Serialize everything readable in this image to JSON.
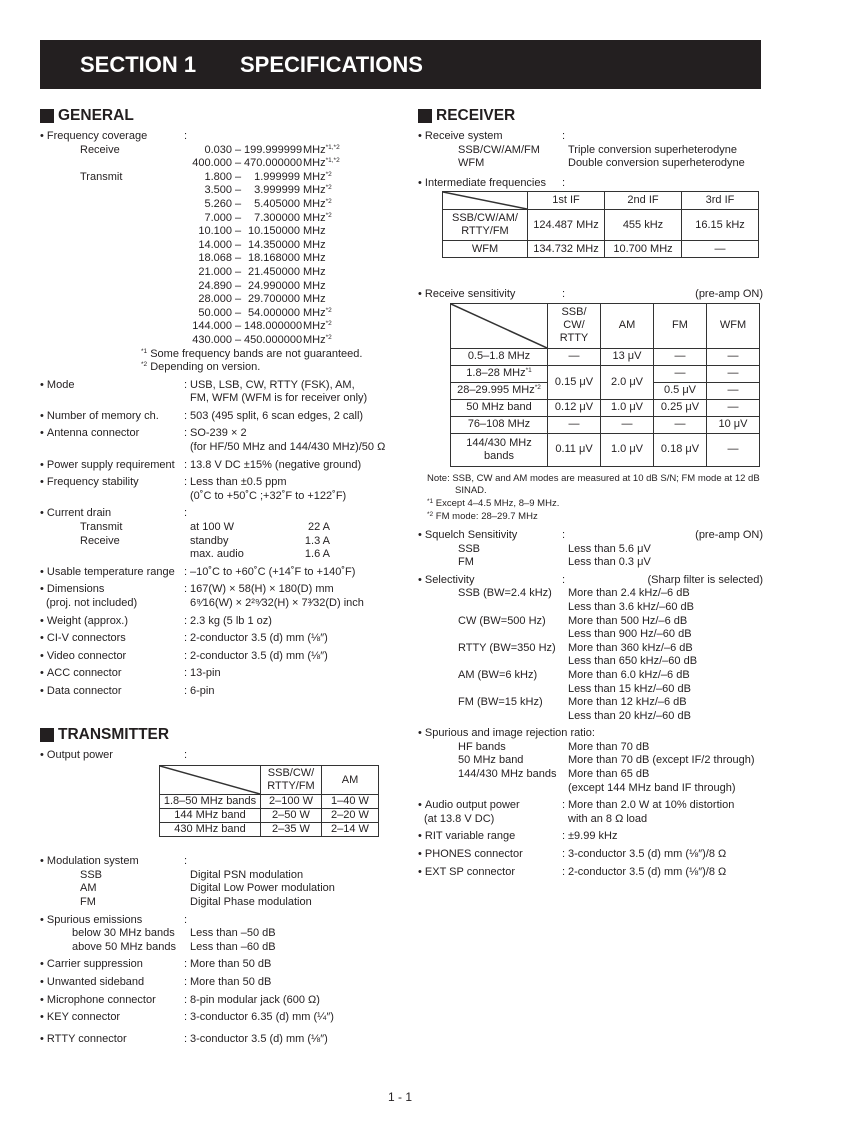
{
  "header": {
    "section": "SECTION 1",
    "title": "SPECIFICATIONS"
  },
  "general": {
    "title": "GENERAL",
    "freq": {
      "label": "Frequency coverage",
      "receive_label": "Receive",
      "receive": [
        {
          "from": "0.030",
          "to": "199.999999",
          "unit": "MHz",
          "note": "*1,*2"
        },
        {
          "from": "400.000",
          "to": "470.000000",
          "unit": "MHz",
          "note": "*1,*2"
        }
      ],
      "transmit_label": "Transmit",
      "transmit": [
        {
          "from": "1.800",
          "to": "1.999999",
          "unit": "MHz",
          "note": "*2"
        },
        {
          "from": "3.500",
          "to": "3.999999",
          "unit": "MHz",
          "note": "*2"
        },
        {
          "from": "5.260",
          "to": "5.405000",
          "unit": "MHz",
          "note": "*2"
        },
        {
          "from": "7.000",
          "to": "7.300000",
          "unit": "MHz",
          "note": "*2"
        },
        {
          "from": "10.100",
          "to": "10.150000",
          "unit": "MHz",
          "note": ""
        },
        {
          "from": "14.000",
          "to": "14.350000",
          "unit": "MHz",
          "note": ""
        },
        {
          "from": "18.068",
          "to": "18.168000",
          "unit": "MHz",
          "note": ""
        },
        {
          "from": "21.000",
          "to": "21.450000",
          "unit": "MHz",
          "note": ""
        },
        {
          "from": "24.890",
          "to": "24.990000",
          "unit": "MHz",
          "note": ""
        },
        {
          "from": "28.000",
          "to": "29.700000",
          "unit": "MHz",
          "note": ""
        },
        {
          "from": "50.000",
          "to": "54.000000",
          "unit": "MHz",
          "note": "*2"
        },
        {
          "from": "144.000",
          "to": "148.000000",
          "unit": "MHz",
          "note": "*2"
        },
        {
          "from": "430.000",
          "to": "450.000000",
          "unit": "MHz",
          "note": "*2"
        }
      ],
      "footnotes": [
        {
          "mark": "*1",
          "text": " Some frequency bands are not guaranteed."
        },
        {
          "mark": "*2",
          "text": " Depending on version."
        }
      ]
    },
    "items": [
      {
        "label": "Mode",
        "value": [
          "USB, LSB, CW, RTTY (FSK), AM,",
          "FM, WFM (WFM is for receiver only)"
        ]
      },
      {
        "label": "Number of memory ch.",
        "value": [
          "503 (495 split, 6 scan edges, 2 call)"
        ]
      },
      {
        "label": "Antenna connector",
        "value": [
          "SO-239 × 2",
          "(for HF/50 MHz and 144/430 MHz)/50 Ω"
        ]
      },
      {
        "label": "Power supply requirement",
        "value": [
          "13.8 V DC ±15% (negative ground)"
        ]
      },
      {
        "label": "Frequency stability",
        "value": [
          "Less than ±0.5 ppm",
          "(0˚C to +50˚C ;+32˚F to +122˚F)"
        ]
      },
      {
        "label": "Current drain",
        "value": [],
        "sub": [
          {
            "label": "Transmit",
            "value": "at 100 W",
            "extra": "22 A"
          },
          {
            "label": "Receive",
            "value": "standby",
            "extra": "1.3 A"
          },
          {
            "label": "",
            "value": "max. audio",
            "extra": "1.6 A"
          }
        ]
      },
      {
        "label": "Usable temperature range",
        "value": [
          "–10˚C to +60˚C (+14˚F to +140˚F)"
        ]
      },
      {
        "label": "Dimensions",
        "label_sub": "(proj. not included)",
        "value": [
          "167(W) × 58(H) × 180(D) mm",
          "6⁹⁄16(W) × 2²⁹⁄32(H) × 7³⁄32(D) inch"
        ]
      },
      {
        "label": "Weight (approx.)",
        "value": [
          "2.3 kg (5 lb 1 oz)"
        ]
      },
      {
        "label": "CI-V connectors",
        "value": [
          "2-conductor 3.5 (d) mm (⅛″)"
        ]
      },
      {
        "label": "Video connector",
        "value": [
          "2-conductor 3.5 (d) mm (⅛″)"
        ]
      },
      {
        "label": "ACC connector",
        "value": [
          "13-pin"
        ]
      },
      {
        "label": "Data connector",
        "value": [
          "6-pin"
        ]
      }
    ]
  },
  "transmitter": {
    "title": "TRANSMITTER",
    "output_power": {
      "label": "Output power",
      "table": {
        "columns": [
          "SSB/CW/\nRTTY/FM",
          "AM"
        ],
        "rows": [
          {
            "band": "1.8–50 MHz bands",
            "values": [
              "2–100 W",
              "1–40 W"
            ]
          },
          {
            "band": "144 MHz band",
            "values": [
              "2–50 W",
              "2–20 W"
            ]
          },
          {
            "band": "430 MHz band",
            "values": [
              "2–35 W",
              "2–14 W"
            ]
          }
        ]
      }
    },
    "items": [
      {
        "label": "Modulation system",
        "value": [],
        "sub": [
          {
            "label": "SSB",
            "value": "Digital PSN modulation"
          },
          {
            "label": "AM",
            "value": "Digital Low Power modulation"
          },
          {
            "label": "FM",
            "value": "Digital Phase modulation"
          }
        ]
      },
      {
        "label": "Spurious emissions",
        "value": [],
        "sub_indent": "narrow",
        "sub": [
          {
            "label": "below 30 MHz bands",
            "value": "Less than –50 dB"
          },
          {
            "label": "above 50 MHz bands",
            "value": "Less than –60 dB"
          }
        ]
      },
      {
        "label": "Carrier suppression",
        "value": [
          "More than 50 dB"
        ]
      },
      {
        "label": "Unwanted sideband",
        "value": [
          "More than 50 dB"
        ]
      },
      {
        "label": "Microphone connector",
        "value": [
          "8-pin modular jack (600 Ω)"
        ]
      },
      {
        "label": "KEY connector",
        "value": [
          "3-conductor 6.35 (d) mm (¼″)"
        ]
      },
      {
        "label": "RTTY connector",
        "value": [
          "3-conductor 3.5 (d) mm (⅛″)"
        ]
      }
    ]
  },
  "receiver": {
    "title": "RECEIVER",
    "receive_system": {
      "label": "Receive system",
      "sub": [
        {
          "label": "SSB/CW/AM/FM",
          "value": "Triple conversion superheterodyne"
        },
        {
          "label": "WFM",
          "value": "Double conversion superheterodyne"
        }
      ]
    },
    "if": {
      "label": "Intermediate frequencies",
      "columns": [
        "1st IF",
        "2nd IF",
        "3rd IF"
      ],
      "rows": [
        {
          "mode": "SSB/CW/AM/\nRTTY/FM",
          "values": [
            "124.487 MHz",
            "455 kHz",
            "16.15 kHz"
          ]
        },
        {
          "mode": "WFM",
          "values": [
            "134.732 MHz",
            "10.700 MHz",
            "—"
          ]
        }
      ]
    },
    "sensitivity": {
      "label": "Receive sensitivity",
      "condition": "(pre-amp ON)",
      "columns": [
        "SSB/\nCW/\nRTTY",
        "AM",
        "FM",
        "WFM"
      ],
      "rows": [
        {
          "band": "0.5–1.8 MHz",
          "note": "",
          "values": [
            "—",
            "13 μV",
            "—",
            "—"
          ]
        },
        {
          "band": "1.8–28 MHz",
          "note": "*1",
          "values": [
            "0.15 μV",
            "2.0 μV",
            "—",
            "—"
          ]
        },
        {
          "band": "28–29.995 MHz",
          "note": "*2",
          "values": [
            "0.15 μV",
            "2.0 μV",
            "0.5 μV",
            "—"
          ]
        },
        {
          "band": "50 MHz band",
          "note": "",
          "values": [
            "0.12 μV",
            "1.0 μV",
            "0.25 μV",
            "—"
          ]
        },
        {
          "band": "76–108 MHz",
          "note": "",
          "values": [
            "—",
            "—",
            "—",
            "10 μV"
          ]
        },
        {
          "band": "144/430 MHz\nbands",
          "note": "",
          "values": [
            "0.11 μV",
            "1.0 μV",
            "0.18 μV",
            "—"
          ]
        }
      ],
      "note": "Note: SSB, CW and AM modes are measured at 10 dB S/N; FM mode at 12 dB SINAD.",
      "footnotes": [
        {
          "mark": "*1",
          "text": " Except 4–4.5 MHz, 8–9 MHz."
        },
        {
          "mark": "*2",
          "text": " FM mode: 28–29.7 MHz"
        }
      ]
    },
    "items": [
      {
        "label": "Squelch Sensitivity",
        "right_note": "(pre-amp ON)",
        "value": [],
        "sub": [
          {
            "label": "SSB",
            "value": "Less than 5.6 μV"
          },
          {
            "label": "FM",
            "value": "Less than 0.3 μV"
          }
        ]
      },
      {
        "label": "Selectivity",
        "right_note": "(Sharp filter is selected)",
        "value": [],
        "sub": [
          {
            "label": "SSB (BW=2.4 kHz)",
            "value": "More than 2.4 kHz/–6 dB"
          },
          {
            "label": "",
            "value": "Less than 3.6 kHz/–60 dB"
          },
          {
            "label": "CW (BW=500 Hz)",
            "value": "More than 500 Hz/–6 dB"
          },
          {
            "label": "",
            "value": "Less than 900 Hz/–60 dB"
          },
          {
            "label": "RTTY (BW=350 Hz)",
            "value": "More than 360 kHz/–6 dB"
          },
          {
            "label": "",
            "value": "Less than 650 kHz/–60 dB"
          },
          {
            "label": "AM (BW=6 kHz)",
            "value": "More than 6.0 kHz/–6 dB"
          },
          {
            "label": "",
            "value": "Less than 15 kHz/–60 dB"
          },
          {
            "label": "FM (BW=15 kHz)",
            "value": "More than 12 kHz/–6 dB"
          },
          {
            "label": "",
            "value": "Less than 20 kHz/–60 dB"
          }
        ]
      },
      {
        "label": "Spurious and image rejection ratio:",
        "no_colon": true,
        "value": [],
        "sub": [
          {
            "label": "HF bands",
            "value": "More than 70 dB"
          },
          {
            "label": "50 MHz band",
            "value": "More than 70 dB (except IF/2 through)"
          },
          {
            "label": "144/430 MHz bands",
            "value": "More than 65 dB"
          },
          {
            "label": "",
            "value": "(except 144 MHz band IF through)"
          }
        ]
      },
      {
        "label": "Audio output power",
        "label_sub": "(at 13.8 V DC)",
        "value": [
          "More than 2.0  W at 10% distortion",
          "with an 8 Ω load"
        ]
      },
      {
        "label": "RIT variable range",
        "value": [
          "±9.99 kHz"
        ]
      },
      {
        "label": "PHONES connector",
        "value": [
          "3-conductor 3.5 (d) mm (⅛″)/8 Ω"
        ]
      },
      {
        "label": "EXT SP connector",
        "value": [
          "2-conductor 3.5 (d) mm (⅛″)/8 Ω"
        ]
      }
    ]
  },
  "colon": ":",
  "page_number": "1 - 1"
}
